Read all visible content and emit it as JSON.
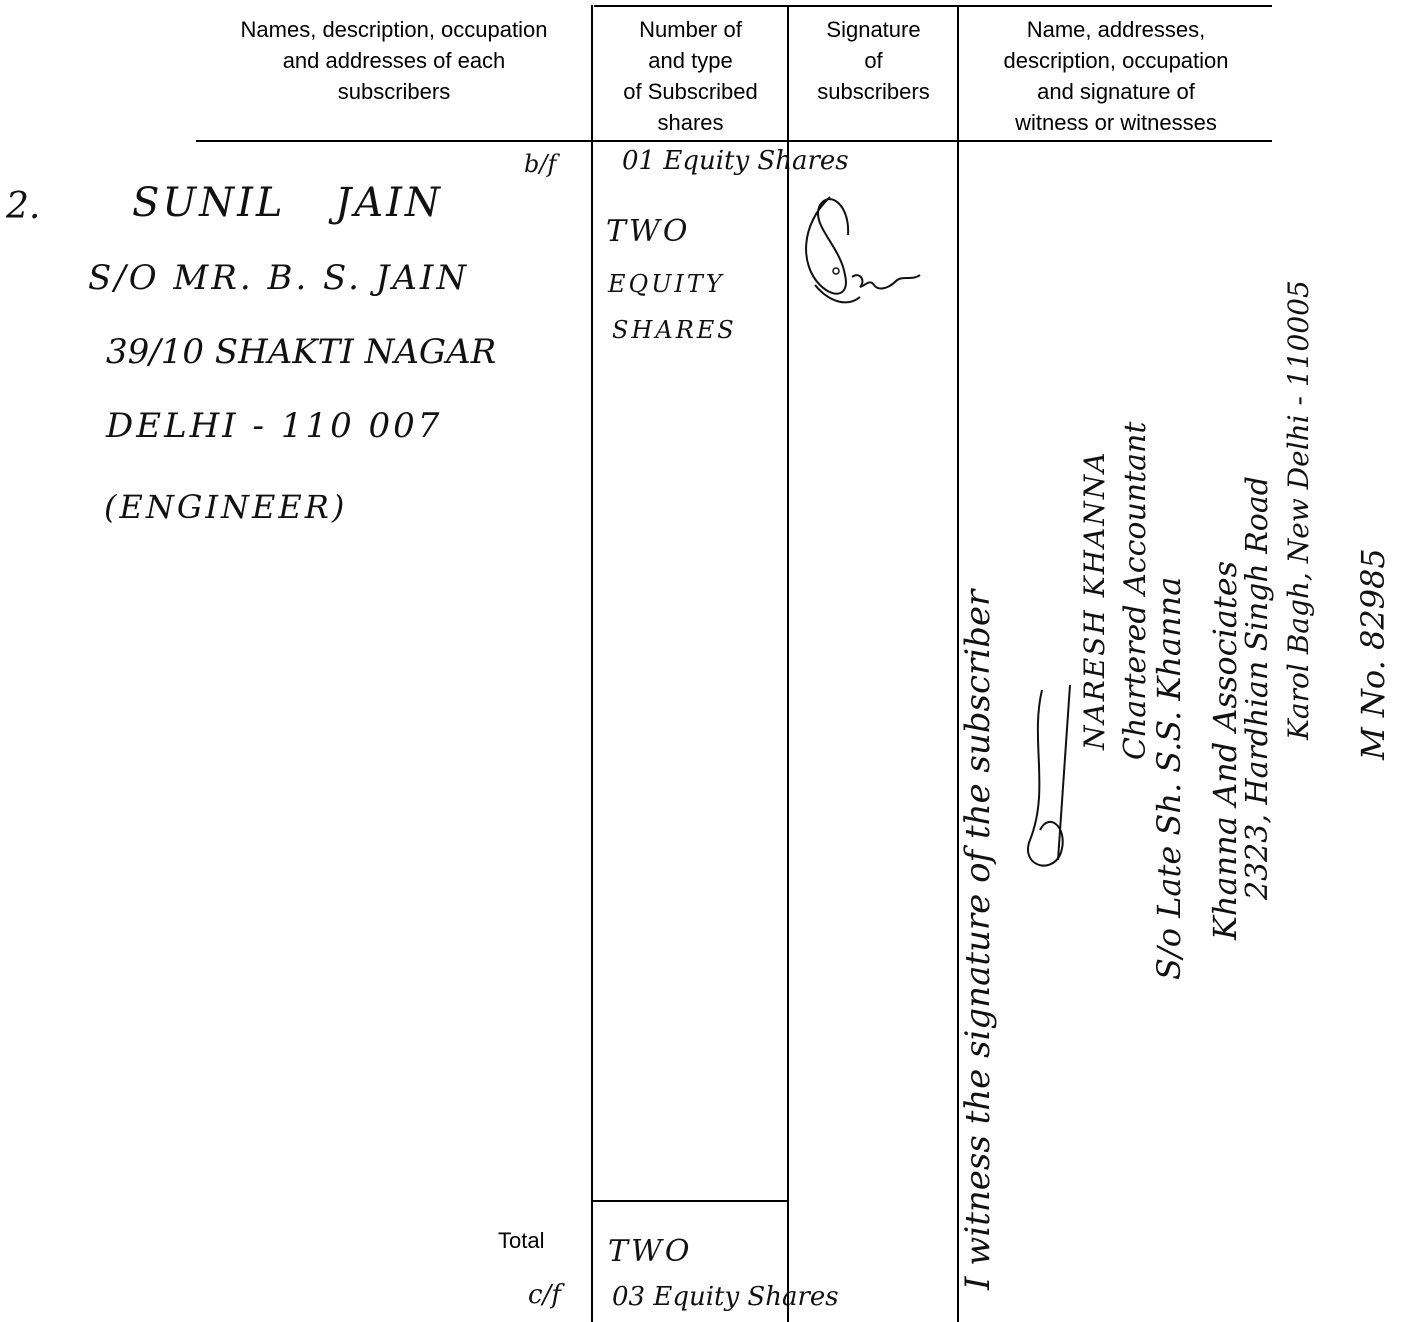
{
  "header": {
    "col1": "Names, description, occupation\nand addresses of each\nsubscribers",
    "col2": "Number of\nand type\nof Subscribed\nshares",
    "col3": "Signature\nof\nsubscribers",
    "col4": "Name, addresses,\ndescription, occupation\nand signature of\nwitness or witnesses"
  },
  "brought_forward": {
    "label": "b/f",
    "shares": "01 Equity Shares"
  },
  "subscriber": {
    "number": "2.",
    "name": "SUNIL JAIN",
    "parentage": "S/O MR. B. S. JAIN",
    "address_line1": "39/10 SHAKTI NAGAR",
    "address_line2": "DELHI - 110 007",
    "occupation": "(ENGINEER)",
    "shares_line1": "TWO",
    "shares_line2": "EQUITY",
    "shares_line3": "SHARES"
  },
  "witness": {
    "line1": "I witness the signature of the subscriber",
    "line2": "NARESH KHANNA",
    "line3": "Chartered Accountant",
    "line4": "S/o Late Sh. S.S. Khanna",
    "line5": "Khanna And Associates",
    "line6": "2323, Hardhian Singh Road",
    "line7": "Karol Bagh, New Delhi - 110005",
    "line8": "M No. 82985"
  },
  "footer": {
    "total_label": "Total",
    "cf_label": "c/f",
    "total_shares": "TWO",
    "cf_shares": "03 Equity Shares"
  }
}
